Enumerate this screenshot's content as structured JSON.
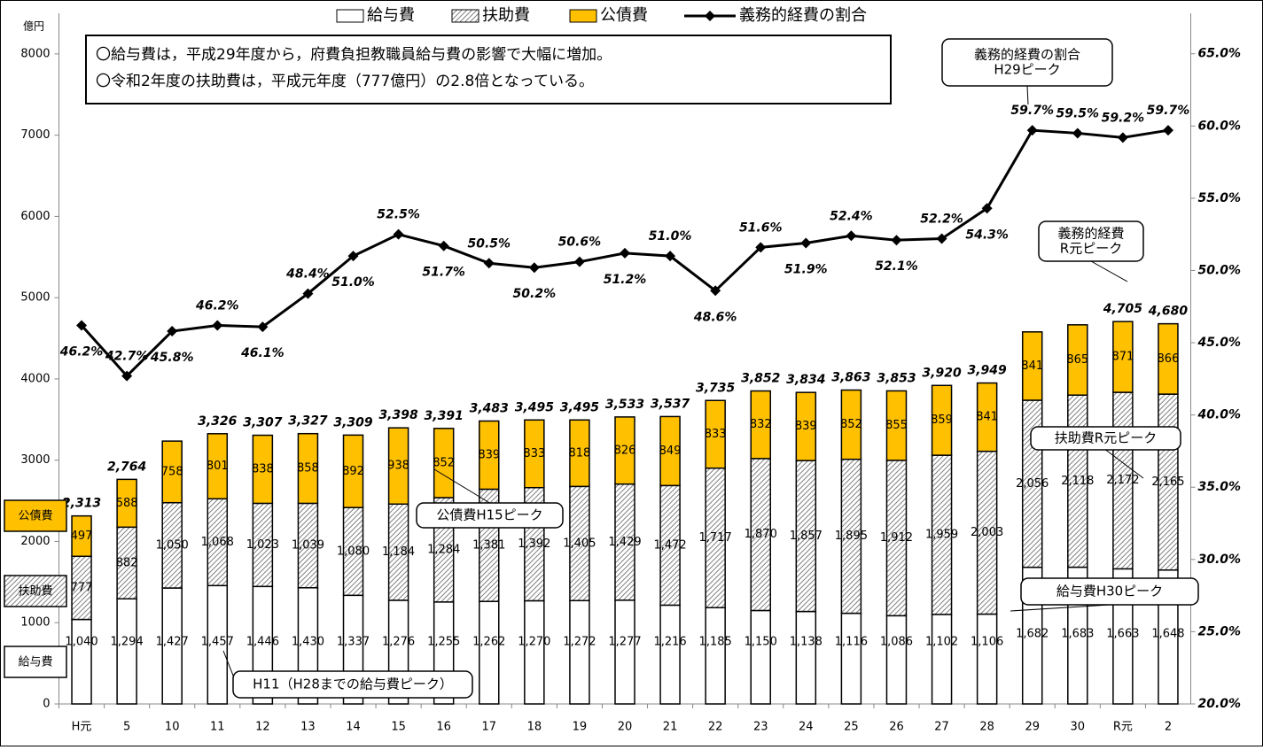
{
  "chart_data": {
    "type": "bar",
    "ylabel": "億円",
    "categories": [
      "H元",
      "5",
      "10",
      "11",
      "12",
      "13",
      "14",
      "15",
      "16",
      "17",
      "18",
      "19",
      "20",
      "21",
      "22",
      "23",
      "24",
      "25",
      "26",
      "27",
      "28",
      "29",
      "30",
      "R元",
      "2"
    ],
    "ylim": [
      0,
      8500
    ],
    "yticks": [
      0,
      1000,
      2000,
      3000,
      4000,
      5000,
      6000,
      7000,
      8000
    ],
    "y2lim": [
      20,
      67.8
    ],
    "y2ticks": [
      {
        "value": 20,
        "label": "20.0%"
      },
      {
        "value": 25,
        "label": "25.0%"
      },
      {
        "value": 30,
        "label": "30.0%"
      },
      {
        "value": 35,
        "label": "35.0%"
      },
      {
        "value": 40,
        "label": "40.0%"
      },
      {
        "value": 45,
        "label": "45.0%"
      },
      {
        "value": 50,
        "label": "50.0%"
      },
      {
        "value": 55,
        "label": "55.0%"
      },
      {
        "value": 60,
        "label": "60.0%"
      },
      {
        "value": 65,
        "label": "65.0%"
      }
    ],
    "series": [
      {
        "name": "給与費",
        "color": "#ffffff",
        "values": [
          1040,
          1294,
          1427,
          1457,
          1446,
          1430,
          1337,
          1276,
          1255,
          1262,
          1270,
          1272,
          1277,
          1216,
          1185,
          1150,
          1138,
          1116,
          1086,
          1102,
          1106,
          1682,
          1683,
          1663,
          1648
        ],
        "value_labels": [
          "1,040",
          "1,294",
          "1,427",
          "1,457",
          "1,446",
          "1,430",
          "1,337",
          "1,276",
          "1,255",
          "1,262",
          "1,270",
          "1,272",
          "1,277",
          "1,216",
          "1,185",
          "1,150",
          "1,138",
          "1,116",
          "1,086",
          "1,102",
          "1,106",
          "1,682",
          "1,683",
          "1,663",
          "1,648"
        ]
      },
      {
        "name": "扶助費",
        "color": "#7f7f7f",
        "values": [
          777,
          882,
          1050,
          1068,
          1023,
          1039,
          1080,
          1184,
          1284,
          1381,
          1392,
          1405,
          1429,
          1472,
          1717,
          1870,
          1857,
          1895,
          1912,
          1959,
          2003,
          2056,
          2118,
          2172,
          2165
        ],
        "value_labels": [
          "777",
          "882",
          "1,050",
          "1,068",
          "1,023",
          "1,039",
          "1,080",
          "1,184",
          "1,284",
          "1,381",
          "1,392",
          "1,405",
          "1,429",
          "1,472",
          "1,717",
          "1,870",
          "1,857",
          "1,895",
          "1,912",
          "1,959",
          "2,003",
          "2,056",
          "2,118",
          "2,172",
          "2,165"
        ]
      },
      {
        "name": "公債費",
        "color": "#ffc000",
        "values": [
          497,
          588,
          758,
          801,
          838,
          858,
          892,
          938,
          852,
          839,
          833,
          818,
          826,
          849,
          833,
          832,
          839,
          852,
          855,
          859,
          841,
          841,
          865,
          871,
          866
        ]
      },
      {
        "name": "義務的経費の割合",
        "color": "#000000",
        "axis": "y2",
        "values": [
          46.2,
          42.7,
          45.8,
          46.2,
          46.1,
          48.4,
          51.0,
          52.5,
          51.7,
          50.5,
          50.2,
          50.6,
          51.2,
          51.0,
          48.6,
          51.6,
          51.9,
          52.4,
          52.1,
          52.2,
          54.3,
          59.7,
          59.5,
          59.2,
          59.7
        ],
        "value_labels": [
          "46.2%",
          "42.7%",
          "45.8%",
          "46.2%",
          "46.1%",
          "48.4%",
          "51.0%",
          "52.5%",
          "51.7%",
          "50.5%",
          "50.2%",
          "50.6%",
          "51.2%",
          "51.0%",
          "48.6%",
          "51.6%",
          "51.9%",
          "52.4%",
          "52.1%",
          "52.2%",
          "54.3%",
          "59.7%",
          "59.5%",
          "59.2%",
          "59.7%"
        ]
      }
    ],
    "totals": [
      2313,
      2764,
      null,
      3326,
      3307,
      3327,
      3309,
      3398,
      3391,
      3483,
      3495,
      3495,
      3533,
      3537,
      3735,
      3852,
      3834,
      3863,
      3853,
      3920,
      3949,
      null,
      null,
      4705,
      4680
    ],
    "total_labels": [
      "2,313",
      "2,764",
      null,
      "3,326",
      "3,307",
      "3,327",
      "3,309",
      "3,398",
      "3,391",
      "3,483",
      "3,495",
      "3,495",
      "3,533",
      "3,537",
      "3,735",
      "3,852",
      "3,834",
      "3,863",
      "3,853",
      "3,920",
      "3,949",
      null,
      null,
      "4,705",
      "4,680"
    ],
    "notes": [
      "〇給与費は，平成29年度から，府費負担教職員給与費の影響で大幅に増加。",
      "〇令和2年度の扶助費は，平成元年度（777億円）の2.8倍となっている。"
    ],
    "annotations": [
      [
        "義務的経費の割合",
        "H29ピーク"
      ],
      [
        "義務的経費",
        "R元ピーク"
      ],
      [
        "扶助費R元ピーク"
      ],
      [
        "公債費H15ピーク"
      ],
      [
        "給与費H30ピーク"
      ],
      [
        "H11（H28までの給与費ピーク）"
      ]
    ],
    "side_labels": [
      "公債費",
      "扶助費",
      "給与費"
    ]
  }
}
